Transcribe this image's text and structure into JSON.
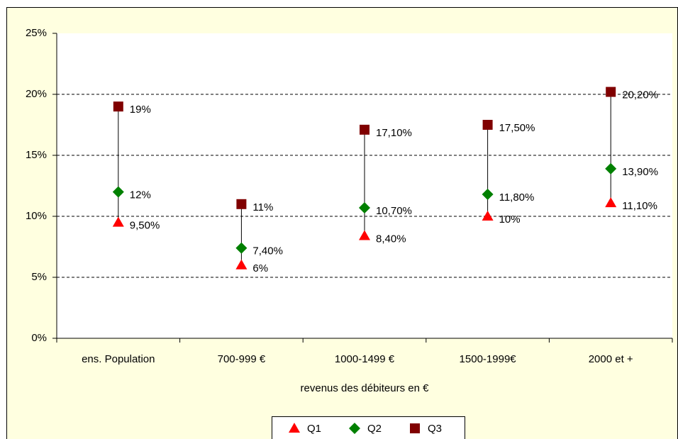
{
  "chart_data": {
    "type": "dot",
    "x_label": "revenus des débiteurs en €",
    "categories": [
      "ens. Population",
      "700-999 €",
      "1000-1499 €",
      "1500-1999€",
      "2000 et +"
    ],
    "series": [
      {
        "name": "Q1",
        "color": "#ff0000",
        "marker": "triangle",
        "values": [
          9.5,
          6,
          8.4,
          10,
          11.1
        ],
        "value_labels": [
          "9,50%",
          "6%",
          "8,40%",
          "10%",
          "11,10%"
        ]
      },
      {
        "name": "Q2",
        "color": "#008000",
        "marker": "diamond",
        "values": [
          12,
          7.4,
          10.7,
          11.8,
          13.9
        ],
        "value_labels": [
          "12%",
          "7,40%",
          "10,70%",
          "11,80%",
          "13,90%"
        ]
      },
      {
        "name": "Q3",
        "color": "#800000",
        "marker": "square",
        "values": [
          19,
          11,
          17.1,
          17.5,
          20.2
        ],
        "value_labels": [
          "19%",
          "11%",
          "17,10%",
          "17,50%",
          "20,20%"
        ]
      }
    ],
    "ylim": [
      0,
      25
    ],
    "yticks": [
      {
        "value": 0,
        "label": "0%"
      },
      {
        "value": 5,
        "label": "5%"
      },
      {
        "value": 10,
        "label": "10%"
      },
      {
        "value": 15,
        "label": "15%"
      },
      {
        "value": 20,
        "label": "20%"
      },
      {
        "value": 25,
        "label": "25%"
      }
    ],
    "grid": true,
    "high_low_lines": true,
    "legend": "bottom"
  }
}
